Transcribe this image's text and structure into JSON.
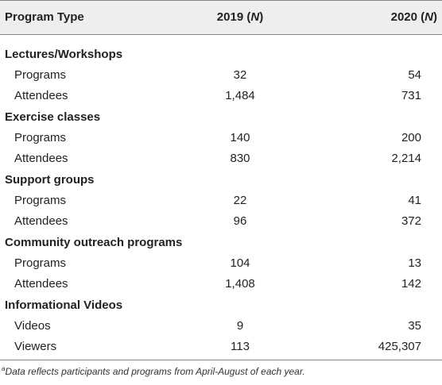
{
  "header": {
    "col0": "Program Type",
    "col1_year": "2019",
    "col1_n": "N",
    "col2_year": "2020",
    "col2_n": "N"
  },
  "groups": [
    {
      "name": "Lectures/Workshops",
      "rows": [
        {
          "label": "Programs",
          "y2019": "32",
          "y2020": "54"
        },
        {
          "label": "Attendees",
          "y2019": "1,484",
          "y2020": "731"
        }
      ]
    },
    {
      "name": "Exercise classes",
      "rows": [
        {
          "label": "Programs",
          "y2019": "140",
          "y2020": "200"
        },
        {
          "label": "Attendees",
          "y2019": "830",
          "y2020": "2,214"
        }
      ]
    },
    {
      "name": "Support groups",
      "rows": [
        {
          "label": "Programs",
          "y2019": "22",
          "y2020": "41"
        },
        {
          "label": "Attendees",
          "y2019": "96",
          "y2020": "372"
        }
      ]
    },
    {
      "name": "Community outreach programs",
      "rows": [
        {
          "label": "Programs",
          "y2019": "104",
          "y2020": "13"
        },
        {
          "label": "Attendees",
          "y2019": "1,408",
          "y2020": "142"
        }
      ]
    },
    {
      "name": "Informational Videos",
      "rows": [
        {
          "label": "Videos",
          "y2019": "9",
          "y2020": "35"
        },
        {
          "label": "Viewers",
          "y2019": "113",
          "y2020": "425,307"
        }
      ]
    }
  ],
  "footnote": {
    "marker": "a",
    "text": "Data reflects participants and programs from April-August of each year."
  }
}
